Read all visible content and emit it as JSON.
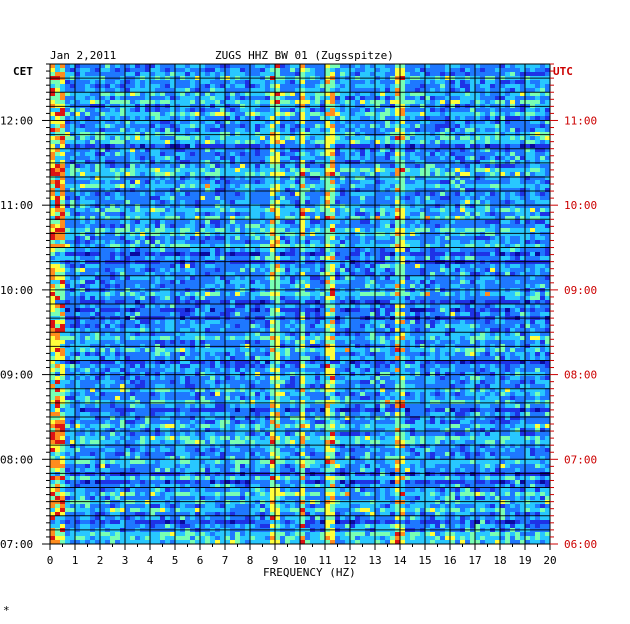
{
  "header": {
    "date": "Jan 2,2011",
    "station": "ZUGS HHZ BW 01 (Zugsspitze)"
  },
  "chart_data": {
    "type": "heatmap",
    "title": "ZUGS HHZ BW 01 (Zugsspitze)",
    "date": "Jan 2,2011",
    "xlabel": "FREQUENCY (HZ)",
    "x_ticks": [
      "0",
      "1",
      "2",
      "3",
      "4",
      "5",
      "6",
      "7",
      "8",
      "9",
      "10",
      "11",
      "12",
      "13",
      "14",
      "15",
      "16",
      "17",
      "18",
      "19",
      "20"
    ],
    "xlim": [
      0,
      20
    ],
    "left_axis_label": "CET",
    "left_ticks": [
      "12:00",
      "11:00",
      "10:00",
      "09:00",
      "08:00",
      "07:00"
    ],
    "right_axis_label": "UTC",
    "right_ticks": [
      "11:00",
      "10:00",
      "09:00",
      "08:00",
      "07:00",
      "06:00"
    ],
    "time_range_cet": [
      "07:00",
      "12:40"
    ],
    "grid": true,
    "colormap": [
      "#0a0aa0",
      "#1e32e6",
      "#1e78ff",
      "#28c8ff",
      "#78ffb4",
      "#ffff3c",
      "#ff8c1e",
      "#dc1414"
    ],
    "dominant_frequency_bands_hz": [
      0.2,
      9.0,
      10.1,
      11.2,
      14.0
    ],
    "colors": {
      "frame": "#000000",
      "utc_axis": "#cc0000",
      "background": "#ffffff"
    }
  },
  "footer": {
    "mark": "*"
  }
}
